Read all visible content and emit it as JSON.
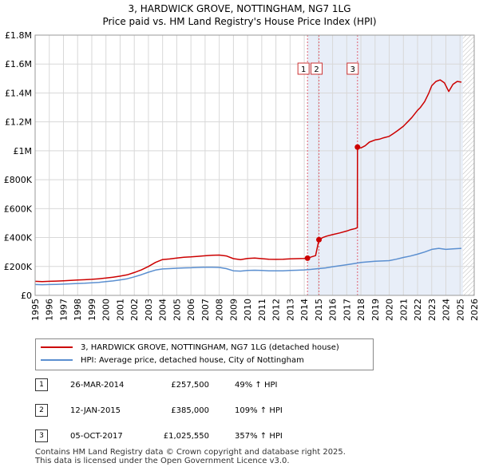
{
  "title_line1": "3, HARDWICK GROVE, NOTTINGHAM, NG7 1LG",
  "title_line2": "Price paid vs. HM Land Registry's House Price Index (HPI)",
  "chart_data": {
    "type": "line",
    "title": "3, HARDWICK GROVE, NOTTINGHAM, NG7 1LG — Price paid vs. HM Land Registry's House Price Index (HPI)",
    "xlim": [
      1995,
      2026
    ],
    "ylim": [
      0,
      1800000
    ],
    "x_ticks": [
      "1995",
      "1996",
      "1997",
      "1998",
      "1999",
      "2000",
      "2001",
      "2002",
      "2003",
      "2004",
      "2005",
      "2006",
      "2007",
      "2008",
      "2009",
      "2010",
      "2011",
      "2012",
      "2013",
      "2014",
      "2015",
      "2016",
      "2017",
      "2018",
      "2019",
      "2020",
      "2021",
      "2022",
      "2023",
      "2024",
      "2025",
      "2026"
    ],
    "y_ticks": [
      {
        "value": 0,
        "label": "£0"
      },
      {
        "value": 200000,
        "label": "£200K"
      },
      {
        "value": 400000,
        "label": "£400K"
      },
      {
        "value": 600000,
        "label": "£600K"
      },
      {
        "value": 800000,
        "label": "£800K"
      },
      {
        "value": 1000000,
        "label": "£1M"
      },
      {
        "value": 1200000,
        "label": "£1.2M"
      },
      {
        "value": 1400000,
        "label": "£1.4M"
      },
      {
        "value": 1600000,
        "label": "£1.6M"
      },
      {
        "value": 1800000,
        "label": "£1.8M"
      }
    ],
    "grid": true,
    "shaded_region": {
      "from": 2014.23,
      "to": 2025.2,
      "color": "#e8eef8"
    },
    "hatched_region": {
      "from": 2025.2,
      "to": 2026
    },
    "series": [
      {
        "name": "3, HARDWICK GROVE, NOTTINGHAM, NG7 1LG (detached house)",
        "color": "#cc0000",
        "x": [
          1995,
          1995.5,
          1996,
          1996.5,
          1997,
          1997.5,
          1998,
          1998.5,
          1999,
          1999.5,
          2000,
          2000.5,
          2001,
          2001.5,
          2002,
          2002.5,
          2003,
          2003.5,
          2004,
          2004.5,
          2005,
          2005.5,
          2006,
          2006.5,
          2007,
          2007.5,
          2008,
          2008.5,
          2009,
          2009.5,
          2010,
          2010.5,
          2011,
          2011.5,
          2012,
          2012.5,
          2013,
          2013.5,
          2014,
          2014.23,
          2014.5,
          2014.8,
          2015.04,
          2015.3,
          2015.6,
          2016,
          2016.5,
          2017,
          2017.3,
          2017.6,
          2017.75,
          2017.76,
          2018,
          2018.3,
          2018.6,
          2019,
          2019.3,
          2019.6,
          2020,
          2020.3,
          2020.6,
          2021,
          2021.3,
          2021.6,
          2022,
          2022.2,
          2022.5,
          2022.8,
          2023,
          2023.3,
          2023.6,
          2023.9,
          2024.2,
          2024.5,
          2024.8,
          2025.1
        ],
        "values": [
          97000,
          95000,
          97000,
          99000,
          101000,
          103000,
          106000,
          108000,
          111000,
          115000,
          120000,
          126000,
          133000,
          142000,
          158000,
          176000,
          200000,
          228000,
          248000,
          252000,
          258000,
          264000,
          266000,
          270000,
          274000,
          277000,
          279000,
          273000,
          254000,
          247000,
          255000,
          258000,
          254000,
          250000,
          249000,
          250000,
          253000,
          254000,
          255000,
          257500,
          266000,
          275000,
          385000,
          400000,
          410000,
          420000,
          432000,
          445000,
          455000,
          462000,
          468000,
          1025550,
          1020000,
          1035000,
          1060000,
          1075000,
          1080000,
          1090000,
          1100000,
          1120000,
          1140000,
          1170000,
          1200000,
          1230000,
          1280000,
          1300000,
          1340000,
          1400000,
          1450000,
          1480000,
          1490000,
          1470000,
          1410000,
          1460000,
          1480000,
          1475000
        ]
      },
      {
        "name": "HPI: Average price, detached house, City of Nottingham",
        "color": "#5b8fd0",
        "x": [
          1995,
          1995.5,
          1996,
          1996.5,
          1997,
          1997.5,
          1998,
          1998.5,
          1999,
          1999.5,
          2000,
          2000.5,
          2001,
          2001.5,
          2002,
          2002.5,
          2003,
          2003.5,
          2004,
          2004.5,
          2005,
          2005.5,
          2006,
          2006.5,
          2007,
          2007.5,
          2008,
          2008.5,
          2009,
          2009.5,
          2010,
          2010.5,
          2011,
          2011.5,
          2012,
          2012.5,
          2013,
          2013.5,
          2014,
          2014.5,
          2015,
          2015.5,
          2016,
          2016.5,
          2017,
          2017.5,
          2018,
          2018.5,
          2019,
          2019.5,
          2020,
          2020.5,
          2021,
          2021.5,
          2022,
          2022.5,
          2023,
          2023.5,
          2024,
          2024.5,
          2025.1
        ],
        "values": [
          75000,
          74000,
          75000,
          76000,
          78000,
          80000,
          82000,
          84000,
          87000,
          90000,
          95000,
          100000,
          107000,
          115000,
          128000,
          143000,
          160000,
          175000,
          183000,
          185000,
          188000,
          190000,
          191000,
          193000,
          195000,
          195000,
          193000,
          185000,
          170000,
          168000,
          172000,
          174000,
          172000,
          170000,
          170000,
          170000,
          172000,
          174000,
          176000,
          180000,
          185000,
          190000,
          198000,
          205000,
          212000,
          220000,
          228000,
          232000,
          236000,
          238000,
          240000,
          250000,
          262000,
          272000,
          285000,
          300000,
          318000,
          325000,
          318000,
          322000,
          325000
        ]
      }
    ],
    "transactions": [
      {
        "num": "1",
        "x": 2014.23,
        "price_value": 257500,
        "date": "26-MAR-2014",
        "price": "£257,500",
        "hpi": "49% ↑ HPI"
      },
      {
        "num": "2",
        "x": 2015.04,
        "price_value": 385000,
        "date": "12-JAN-2015",
        "price": "£385,000",
        "hpi": "109% ↑ HPI"
      },
      {
        "num": "3",
        "x": 2017.76,
        "price_value": 1025550,
        "date": "05-OCT-2017",
        "price": "£1,025,550",
        "hpi": "357% ↑ HPI"
      }
    ]
  },
  "legend": {
    "property_label": "3, HARDWICK GROVE, NOTTINGHAM, NG7 1LG (detached house)",
    "hpi_label": "HPI: Average price, detached house, City of Nottingham"
  },
  "footer": {
    "line1": "Contains HM Land Registry data © Crown copyright and database right 2025.",
    "line2": "This data is licensed under the Open Government Licence v3.0."
  },
  "colors": {
    "property": "#cc0000",
    "hpi": "#5b8fd0",
    "marker_border": "#cc0000",
    "dashed_line": "#e06070"
  }
}
